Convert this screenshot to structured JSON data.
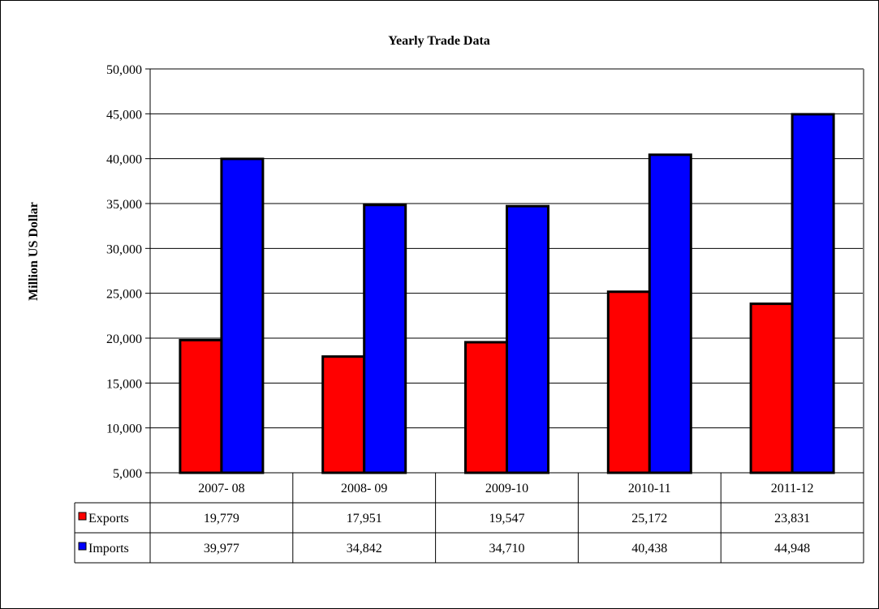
{
  "chart_data": {
    "type": "bar",
    "title": "Yearly Trade Data",
    "xlabel": "",
    "ylabel": "Million US Dollar",
    "categories": [
      "2007- 08",
      "2008- 09",
      "2009-10",
      "2010-11",
      "2011-12"
    ],
    "series": [
      {
        "name": "Exports",
        "values": [
          19779,
          17951,
          19547,
          25172,
          23831
        ],
        "color": "#ff0000"
      },
      {
        "name": "Imports",
        "values": [
          39977,
          34842,
          34710,
          40438,
          44948
        ],
        "color": "#0000ff"
      }
    ],
    "data_labels": {
      "Exports": [
        "19,779",
        "17,951",
        "19,547",
        "25,172",
        "23,831"
      ],
      "Imports": [
        "39,977",
        "34,842",
        "34,710",
        "40,438",
        "44,948"
      ]
    },
    "ylim": [
      5000,
      50000
    ],
    "yticks": [
      5000,
      10000,
      15000,
      20000,
      25000,
      30000,
      35000,
      40000,
      45000,
      50000
    ],
    "ytick_labels": [
      "5,000",
      "10,000",
      "15,000",
      "20,000",
      "25,000",
      "30,000",
      "35,000",
      "40,000",
      "45,000",
      "50,000"
    ],
    "grid": true,
    "legend": "data-table"
  }
}
